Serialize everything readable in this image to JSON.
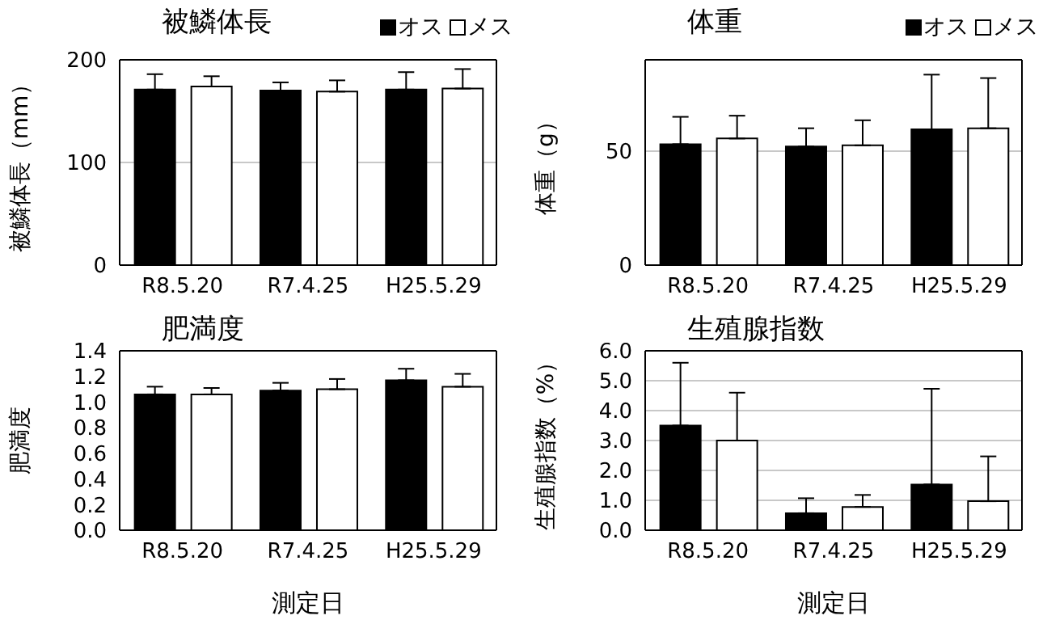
{
  "chart_data": [
    {
      "type": "bar",
      "title": "被鱗体長",
      "ylabel": "被鱗体長（mm）",
      "categories": [
        "R8.5.20",
        "R7.4.25",
        "H25.5.29"
      ],
      "series": [
        {
          "name": "オス",
          "color": "#000000",
          "values": [
            171,
            170,
            171
          ],
          "errors": [
            [
              171,
              186
            ],
            [
              170,
              178
            ],
            [
              171,
              188
            ]
          ]
        },
        {
          "name": "メス",
          "color": "#ffffff",
          "values": [
            174,
            169,
            172
          ],
          "errors": [
            [
              174,
              184
            ],
            [
              169,
              180
            ],
            [
              172,
              191
            ]
          ]
        }
      ],
      "ylim": [
        0,
        200
      ],
      "yticks": [
        0,
        100,
        200
      ],
      "grid": "y",
      "legend": "top right"
    },
    {
      "type": "bar",
      "title": "体重",
      "ylabel": "体重（g）",
      "categories": [
        "R8.5.20",
        "R7.4.25",
        "H25.5.29"
      ],
      "series": [
        {
          "name": "オス",
          "color": "#000000",
          "values": [
            53,
            52,
            59.5
          ],
          "errors": [
            [
              53,
              65
            ],
            [
              52,
              60
            ],
            [
              59.5,
              83.5
            ]
          ]
        },
        {
          "name": "メス",
          "color": "#ffffff",
          "values": [
            55.5,
            52.5,
            60
          ],
          "errors": [
            [
              55.5,
              65.5
            ],
            [
              52.5,
              63.5
            ],
            [
              60,
              82
            ]
          ]
        }
      ],
      "ylim": [
        0,
        90
      ],
      "yticks": [
        0,
        50
      ],
      "grid": "y",
      "legend": "top right"
    },
    {
      "type": "bar",
      "title": "肥満度",
      "xlabel": "測定日",
      "ylabel": "肥満度",
      "categories": [
        "R8.5.20",
        "R7.4.25",
        "H25.5.29"
      ],
      "series": [
        {
          "color": "#000000",
          "values": [
            1.06,
            1.09,
            1.17
          ],
          "errors": [
            [
              1.06,
              1.12
            ],
            [
              1.09,
              1.15
            ],
            [
              1.17,
              1.26
            ]
          ]
        },
        {
          "color": "#ffffff",
          "values": [
            1.06,
            1.1,
            1.12
          ],
          "errors": [
            [
              1.06,
              1.11
            ],
            [
              1.1,
              1.18
            ],
            [
              1.12,
              1.22
            ]
          ]
        }
      ],
      "ylim": [
        0,
        1.4
      ],
      "yticks": [
        {
          "value": 0,
          "label": "0.0"
        },
        0.2,
        0.4,
        0.6,
        0.8,
        {
          "value": 1,
          "label": "1.0"
        },
        1.2,
        1.4
      ],
      "grid": false
    },
    {
      "type": "bar",
      "title": "生殖腺指数",
      "xlabel": "測定日",
      "ylabel": "生殖腺指数（%）",
      "categories": [
        "R8.5.20",
        "R7.4.25",
        "H25.5.29"
      ],
      "series": [
        {
          "color": "#000000",
          "values": [
            3.5,
            0.57,
            1.53
          ],
          "errors": [
            [
              3.5,
              5.6
            ],
            [
              0.57,
              1.07
            ],
            [
              1.53,
              4.73
            ]
          ]
        },
        {
          "color": "#ffffff",
          "values": [
            3.0,
            0.78,
            0.97
          ],
          "errors": [
            [
              3.0,
              4.6
            ],
            [
              0.78,
              1.18
            ],
            [
              0.97,
              2.47
            ]
          ]
        }
      ],
      "ylim": [
        0,
        6
      ],
      "yticks": [
        {
          "value": 0,
          "label": "0.0"
        },
        {
          "value": 1,
          "label": "1.0"
        },
        {
          "value": 2,
          "label": "2.0"
        },
        {
          "value": 3,
          "label": "3.0"
        },
        {
          "value": 4,
          "label": "4.0"
        },
        {
          "value": 5,
          "label": "5.0"
        },
        {
          "value": 6,
          "label": "6.0"
        }
      ],
      "grid": "y"
    }
  ]
}
